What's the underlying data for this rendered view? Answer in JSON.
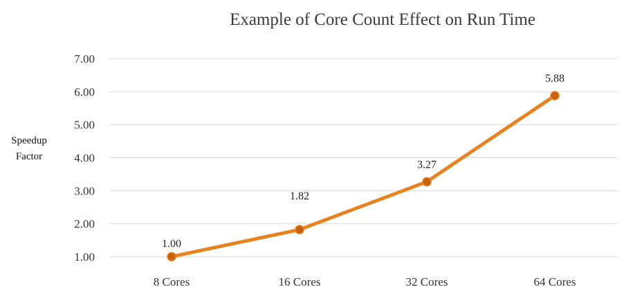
{
  "chart_data": {
    "type": "line",
    "title": "Example of Core Count Effect on Run Time",
    "xlabel": "",
    "ylabel_lines": [
      "Speedup",
      "Factor"
    ],
    "categories": [
      "8 Cores",
      "16 Cores",
      "32 Cores",
      "64 Cores"
    ],
    "series": [
      {
        "name": "Speedup Factor",
        "values": [
          1.0,
          1.82,
          3.27,
          5.88
        ],
        "color": "#E8821E",
        "marker_color": "#C4620E"
      }
    ],
    "data_labels": [
      "1.00",
      "1.82",
      "3.27",
      "5.88"
    ],
    "yticks": [
      1.0,
      2.0,
      3.0,
      4.0,
      5.0,
      6.0,
      7.0
    ],
    "ytick_labels": [
      "1.00",
      "2.00",
      "3.00",
      "4.00",
      "5.00",
      "6.00",
      "7.00"
    ],
    "ylim": [
      1.0,
      7.0
    ],
    "grid": true,
    "legend": "none",
    "grid_color": "#d9d9d9"
  }
}
